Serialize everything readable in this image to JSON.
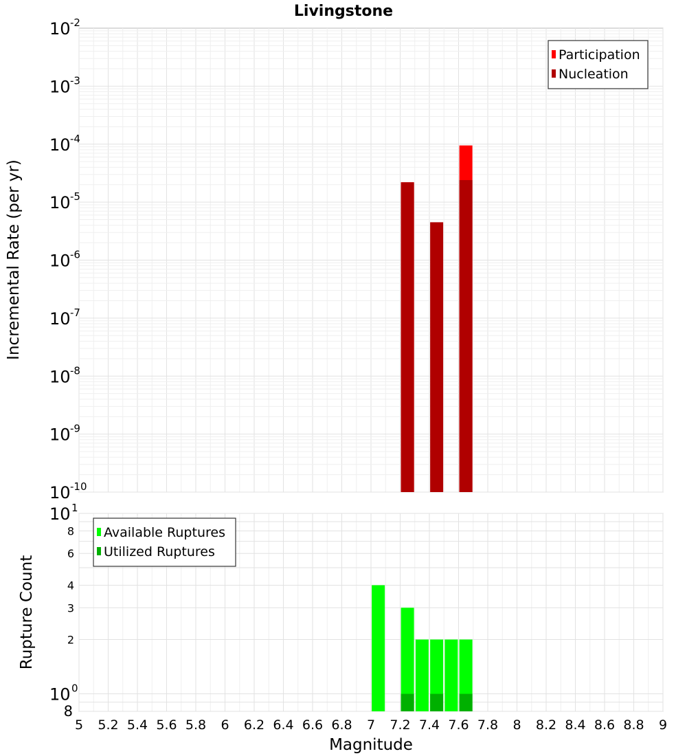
{
  "chart_data": [
    {
      "type": "bar",
      "title": "Livingstone",
      "xlabel": "",
      "ylabel": "Incremental Rate (per yr)",
      "yscale": "log",
      "ylim": [
        1e-10,
        0.01
      ],
      "xlim": [
        5,
        9
      ],
      "y_ticks": [
        {
          "base": "10",
          "exp": "-2"
        },
        {
          "base": "10",
          "exp": "-3"
        },
        {
          "base": "10",
          "exp": "-4"
        },
        {
          "base": "10",
          "exp": "-5"
        },
        {
          "base": "10",
          "exp": "-6"
        },
        {
          "base": "10",
          "exp": "-7"
        },
        {
          "base": "10",
          "exp": "-8"
        },
        {
          "base": "10",
          "exp": "-9"
        },
        {
          "base": "10",
          "exp": "-10"
        }
      ],
      "legend_position": "top-right",
      "series": [
        {
          "name": "Participation",
          "color": "#ff0000",
          "x": [
            7.25,
            7.65
          ],
          "values": [
            2.2e-05,
            9.5e-05
          ]
        },
        {
          "name": "Nucleation",
          "color": "#b00000",
          "x": [
            7.25,
            7.45,
            7.65
          ],
          "values": [
            2.2e-05,
            4.5e-06,
            2.4e-05
          ]
        }
      ]
    },
    {
      "type": "bar",
      "title": "",
      "xlabel": "Magnitude",
      "ylabel": "Rupture Count",
      "yscale": "log",
      "ylim": [
        0.8,
        10
      ],
      "xlim": [
        5,
        9
      ],
      "y_ticks_minor": [
        "8",
        "6",
        "4",
        "3",
        "2"
      ],
      "y_tick_top": {
        "base": "10",
        "exp": "1"
      },
      "y_tick_one": {
        "base": "10",
        "exp": "0"
      },
      "y_tick_bottom": "8",
      "x_ticks": [
        "5",
        "5.2",
        "5.4",
        "5.6",
        "5.8",
        "6",
        "6.2",
        "6.4",
        "6.6",
        "6.8",
        "7",
        "7.2",
        "7.4",
        "7.6",
        "7.8",
        "8",
        "8.2",
        "8.4",
        "8.6",
        "8.8",
        "9"
      ],
      "legend_position": "top-left",
      "series": [
        {
          "name": "Available Ruptures",
          "color": "#00ff00",
          "x": [
            7.05,
            7.25,
            7.35,
            7.45,
            7.55,
            7.65
          ],
          "values": [
            4,
            3,
            2,
            2,
            2,
            2
          ]
        },
        {
          "name": "Utilized Ruptures",
          "color": "#00b000",
          "x": [
            7.25,
            7.45,
            7.65
          ],
          "values": [
            1,
            1,
            1
          ]
        }
      ]
    }
  ]
}
